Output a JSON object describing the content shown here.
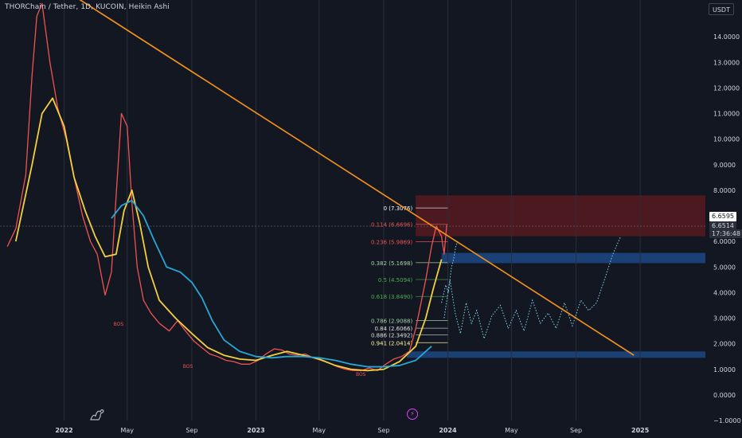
{
  "header": {
    "title": "THORChain / Tether, 1D, KUCOIN, Heikin Ashi",
    "currency_button": "USDT"
  },
  "price_labels": {
    "last": "6.6595",
    "current": "6.6514",
    "countdown": "17:36:48"
  },
  "chart_data": {
    "type": "line",
    "title": "THORChain / Tether, 1D, KUCOIN, Heikin Ashi",
    "ylim": [
      -1,
      15
    ],
    "y_ticks": [
      "14.0000",
      "13.0000",
      "12.0000",
      "11.0000",
      "10.0000",
      "9.0000",
      "8.0000",
      "7.0000",
      "6.0000",
      "5.0000",
      "4.0000",
      "3.0000",
      "2.0000",
      "1.0000",
      "0.0000",
      "−1.0000"
    ],
    "y_tick_values": [
      14,
      13,
      12,
      11,
      10,
      9,
      8,
      7,
      6,
      5,
      4,
      3,
      2,
      1,
      0,
      -1
    ],
    "x_ticks": [
      {
        "label": "2022",
        "date": "2022-01-01",
        "bold": true
      },
      {
        "label": "May",
        "date": "2022-05-01",
        "bold": false
      },
      {
        "label": "Sep",
        "date": "2022-09-01",
        "bold": false
      },
      {
        "label": "2023",
        "date": "2023-01-01",
        "bold": true
      },
      {
        "label": "May",
        "date": "2023-05-01",
        "bold": false
      },
      {
        "label": "Sep",
        "date": "2023-09-01",
        "bold": false
      },
      {
        "label": "2024",
        "date": "2024-01-01",
        "bold": true
      },
      {
        "label": "May",
        "date": "2024-05-01",
        "bold": false
      },
      {
        "label": "Sep",
        "date": "2024-09-01",
        "bold": false
      },
      {
        "label": "2025",
        "date": "2025-01-01",
        "bold": true
      }
    ],
    "x_range": [
      "2021-09-01",
      "2025-05-05"
    ],
    "series": [
      {
        "key": "price",
        "color": "#ef5350",
        "x": [
          "2021-09-15",
          "2021-10-01",
          "2021-10-20",
          "2021-11-01",
          "2021-11-10",
          "2021-11-20",
          "2021-12-05",
          "2021-12-20",
          "2022-01-05",
          "2022-01-20",
          "2022-02-05",
          "2022-02-20",
          "2022-03-05",
          "2022-03-20",
          "2022-04-01",
          "2022-04-10",
          "2022-04-20",
          "2022-05-01",
          "2022-05-10",
          "2022-05-20",
          "2022-06-01",
          "2022-06-15",
          "2022-07-01",
          "2022-07-20",
          "2022-08-05",
          "2022-08-20",
          "2022-09-05",
          "2022-09-20",
          "2022-10-05",
          "2022-10-20",
          "2022-11-05",
          "2022-11-20",
          "2022-12-05",
          "2022-12-20",
          "2023-01-05",
          "2023-01-20",
          "2023-02-05",
          "2023-02-20",
          "2023-03-05",
          "2023-03-20",
          "2023-04-05",
          "2023-04-20",
          "2023-05-05",
          "2023-05-20",
          "2023-06-05",
          "2023-06-20",
          "2023-07-05",
          "2023-07-20",
          "2023-08-05",
          "2023-08-20",
          "2023-09-05",
          "2023-09-20",
          "2023-10-05",
          "2023-10-20",
          "2023-11-01",
          "2023-11-10",
          "2023-11-20",
          "2023-12-01",
          "2023-12-10",
          "2023-12-15",
          "2023-12-20",
          "2023-12-25",
          "2023-12-30"
        ],
        "values": [
          5.8,
          6.5,
          8.6,
          12.5,
          14.8,
          15.3,
          13.0,
          11.2,
          10.0,
          8.5,
          7.0,
          6.0,
          5.5,
          3.9,
          4.8,
          7.8,
          11.0,
          10.5,
          7.5,
          5.0,
          3.7,
          3.2,
          2.8,
          2.5,
          2.9,
          2.5,
          2.1,
          1.85,
          1.6,
          1.5,
          1.35,
          1.3,
          1.2,
          1.2,
          1.35,
          1.6,
          1.8,
          1.75,
          1.6,
          1.55,
          1.6,
          1.45,
          1.35,
          1.25,
          1.1,
          1.0,
          0.95,
          0.95,
          1.05,
          0.95,
          1.2,
          1.4,
          1.5,
          1.7,
          2.6,
          3.5,
          4.5,
          5.8,
          6.6,
          6.4,
          6.2,
          5.5,
          6.65
        ]
      },
      {
        "key": "ema_fast",
        "color": "#f4d03f",
        "x": [
          "2021-10-01",
          "2021-11-01",
          "2021-11-20",
          "2021-12-10",
          "2022-01-01",
          "2022-01-20",
          "2022-02-10",
          "2022-03-01",
          "2022-03-20",
          "2022-04-10",
          "2022-04-25",
          "2022-05-10",
          "2022-05-25",
          "2022-06-10",
          "2022-07-01",
          "2022-08-01",
          "2022-09-01",
          "2022-10-01",
          "2022-11-01",
          "2022-12-01",
          "2023-01-01",
          "2023-02-01",
          "2023-03-01",
          "2023-04-01",
          "2023-05-01",
          "2023-06-01",
          "2023-07-01",
          "2023-08-01",
          "2023-09-01",
          "2023-10-01",
          "2023-11-01",
          "2023-11-20",
          "2023-12-05",
          "2023-12-20"
        ],
        "values": [
          6.0,
          9.0,
          11.0,
          11.6,
          10.5,
          8.5,
          7.2,
          6.2,
          5.4,
          5.5,
          7.2,
          8.0,
          6.7,
          5.0,
          3.7,
          3.0,
          2.4,
          1.85,
          1.55,
          1.4,
          1.35,
          1.55,
          1.7,
          1.55,
          1.4,
          1.15,
          1.0,
          0.95,
          1.0,
          1.3,
          1.9,
          3.0,
          4.2,
          5.3
        ]
      },
      {
        "key": "ema_slow",
        "color": "#26a7d6",
        "x": [
          "2022-04-01",
          "2022-04-20",
          "2022-05-10",
          "2022-06-01",
          "2022-06-20",
          "2022-07-15",
          "2022-08-10",
          "2022-09-01",
          "2022-09-20",
          "2022-10-10",
          "2022-11-01",
          "2022-12-01",
          "2023-01-01",
          "2023-02-01",
          "2023-03-01",
          "2023-04-01",
          "2023-05-01",
          "2023-06-01",
          "2023-07-01",
          "2023-08-01",
          "2023-09-01",
          "2023-10-01",
          "2023-11-01",
          "2023-12-01"
        ],
        "values": [
          6.9,
          7.4,
          7.6,
          7.0,
          6.1,
          5.0,
          4.8,
          4.4,
          3.8,
          2.9,
          2.15,
          1.7,
          1.5,
          1.45,
          1.5,
          1.5,
          1.45,
          1.35,
          1.2,
          1.1,
          1.1,
          1.15,
          1.35,
          1.9
        ]
      }
    ],
    "trendline": {
      "color": "#f7931a",
      "x1": "2021-12-20",
      "y1": 16.0,
      "x2": "2024-12-20",
      "y2": 1.55
    },
    "zones": [
      {
        "color": "rgba(183,28,28,0.35)",
        "x1": "2023-11-01",
        "x2": "2025-05-05",
        "y_top": 7.8,
        "y_bottom": 6.2
      },
      {
        "color": "rgba(33,99,186,0.55)",
        "x1": "2023-12-20",
        "x2": "2025-05-05",
        "y_top": 5.55,
        "y_bottom": 5.15
      },
      {
        "color": "rgba(33,99,186,0.55)",
        "x1": "2023-10-15",
        "x2": "2025-05-05",
        "y_top": 1.7,
        "y_bottom": 1.45
      }
    ],
    "fib_x_range": [
      "2023-11-01",
      "2024-01-01"
    ],
    "fib_levels": [
      {
        "label": "0 (7.3076)",
        "y": 7.3076,
        "color": "#ffffff"
      },
      {
        "label": "0.114 (6.6696)",
        "y": 6.6696,
        "color": "#ef5350"
      },
      {
        "label": "0.236 (5.9869)",
        "y": 5.9869,
        "color": "#ef5350"
      },
      {
        "label": "0.382 (5.1698)",
        "y": 5.1698,
        "color": "#a5d6a7"
      },
      {
        "label": "0.5 (4.5094)",
        "y": 4.5094,
        "color": "#4caf50"
      },
      {
        "label": "0.618 (3.8490)",
        "y": 3.849,
        "color": "#4caf50"
      },
      {
        "label": "0.786 (2.9088)",
        "y": 2.9088,
        "color": "#a5d6a7"
      },
      {
        "label": "0.84 (2.6066)",
        "y": 2.6066,
        "color": "#e0e0e0"
      },
      {
        "label": "0.886 (2.3492)",
        "y": 2.3492,
        "color": "#e0e0e0"
      },
      {
        "label": "0.941 (2.0414)",
        "y": 2.0414,
        "color": "#fff59d"
      }
    ],
    "projection_1": {
      "color": "#7fd9ea",
      "x": [
        "2023-12-25",
        "2024-01-05",
        "2024-01-15",
        "2024-01-25",
        "2024-02-05",
        "2024-02-15",
        "2024-02-25",
        "2024-03-10",
        "2024-03-25",
        "2024-04-10",
        "2024-04-25",
        "2024-05-10",
        "2024-05-25",
        "2024-06-10",
        "2024-06-25",
        "2024-07-10",
        "2024-07-25",
        "2024-08-10",
        "2024-08-25",
        "2024-09-10",
        "2024-09-25",
        "2024-10-10",
        "2024-10-25",
        "2024-11-10",
        "2024-11-25"
      ],
      "values": [
        3.0,
        4.5,
        3.2,
        2.4,
        3.6,
        2.8,
        3.3,
        2.2,
        3.1,
        3.5,
        2.6,
        3.3,
        2.5,
        3.7,
        2.8,
        3.2,
        2.6,
        3.6,
        2.7,
        3.7,
        3.3,
        3.6,
        4.5,
        5.5,
        6.2
      ]
    },
    "projection_2": {
      "color": "#7fd9ea",
      "x": [
        "2023-12-20",
        "2023-12-28",
        "2024-01-02",
        "2024-01-08",
        "2024-01-12",
        "2024-01-16",
        "2024-01-20"
      ],
      "values": [
        3.6,
        4.3,
        4.0,
        5.0,
        5.3,
        5.8,
        6.0
      ]
    },
    "markers": [
      {
        "label": "BOS",
        "x": "2022-04-05",
        "y": 2.7
      },
      {
        "label": "BOS",
        "x": "2022-08-15",
        "y": 1.05
      },
      {
        "label": "BOS",
        "x": "2023-07-10",
        "y": 0.75
      }
    ]
  }
}
